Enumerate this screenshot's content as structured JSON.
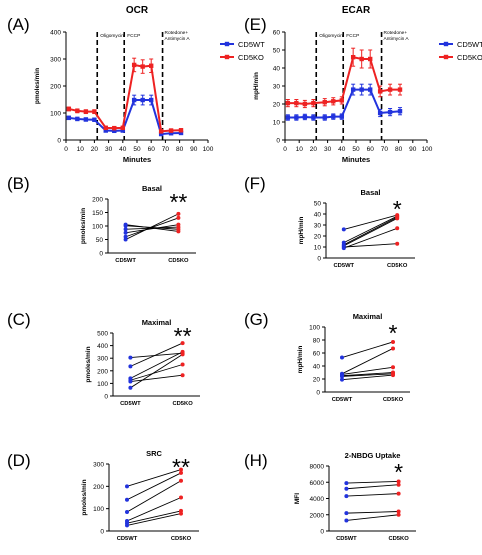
{
  "colors": {
    "wt": "#2233dd",
    "ko": "#ee2222",
    "axis": "#000000"
  },
  "chart_data": [
    {
      "id": "A",
      "panel_letter": "(A)",
      "type": "line",
      "title": "OCR",
      "xlabel": "Minutes",
      "ylabel": "pmoles/min",
      "xlim": [
        0,
        100
      ],
      "ylim": [
        0,
        400
      ],
      "xticks": [
        0,
        10,
        20,
        30,
        40,
        50,
        60,
        70,
        80,
        90,
        100
      ],
      "yticks": [
        0,
        100,
        200,
        300,
        400
      ],
      "legend": [
        "CD5WT",
        "CD5KO"
      ],
      "legend_position": "right",
      "vlines": [
        {
          "x": 22,
          "label": "Oligomycin"
        },
        {
          "x": 41,
          "label": "FCCP"
        },
        {
          "x": 68,
          "label": "Rotedone+ Antimycin A"
        }
      ],
      "x": [
        2,
        8,
        14,
        20,
        28,
        34,
        40,
        48,
        54,
        60,
        67,
        74,
        81
      ],
      "series": [
        {
          "name": "CD5WT",
          "values": [
            82,
            78,
            76,
            75,
            35,
            34,
            35,
            148,
            148,
            148,
            22,
            25,
            26
          ],
          "err": [
            6,
            6,
            6,
            6,
            5,
            5,
            5,
            18,
            18,
            18,
            5,
            5,
            5
          ]
        },
        {
          "name": "CD5KO",
          "values": [
            115,
            108,
            105,
            105,
            45,
            44,
            45,
            278,
            272,
            275,
            32,
            35,
            36
          ],
          "err": [
            7,
            7,
            7,
            7,
            6,
            6,
            6,
            25,
            25,
            25,
            6,
            6,
            6
          ]
        }
      ]
    },
    {
      "id": "E",
      "panel_letter": "(E)",
      "type": "line",
      "title": "ECAR",
      "xlabel": "Minutes",
      "ylabel": "mpH/min",
      "xlim": [
        0,
        100
      ],
      "ylim": [
        0,
        60
      ],
      "xticks": [
        0,
        10,
        20,
        30,
        40,
        50,
        60,
        70,
        80,
        90,
        100
      ],
      "yticks": [
        0,
        10,
        20,
        30,
        40,
        50,
        60
      ],
      "legend": [
        "CD5WT",
        "CD5KO"
      ],
      "legend_position": "right",
      "vlines": [
        {
          "x": 22,
          "label": "Oligomycin"
        },
        {
          "x": 41,
          "label": "FCCP"
        },
        {
          "x": 68,
          "label": "Rotedone+ Antimycin A"
        }
      ],
      "x": [
        2,
        8,
        14,
        20,
        28,
        34,
        40,
        48,
        54,
        60,
        67,
        74,
        81
      ],
      "series": [
        {
          "name": "CD5WT",
          "values": [
            12.5,
            12.5,
            12.8,
            12.5,
            12.5,
            13,
            13,
            28,
            28,
            28,
            15,
            15.5,
            16
          ],
          "err": [
            1.5,
            1.5,
            1.5,
            1.5,
            1.5,
            1.5,
            1.5,
            3,
            3,
            3,
            2,
            2,
            2
          ]
        },
        {
          "name": "CD5KO",
          "values": [
            20.5,
            20.5,
            20,
            20.5,
            21,
            21.5,
            22,
            46,
            45,
            45,
            27,
            28,
            28
          ],
          "err": [
            2,
            2,
            2,
            2,
            2,
            2,
            2,
            5,
            5,
            5,
            3,
            3,
            3
          ]
        }
      ]
    },
    {
      "id": "B",
      "panel_letter": "(B)",
      "type": "paired_dot",
      "title": "Basal",
      "ylabel": "pmoles/min",
      "categories": [
        "CD5WT",
        "CD5KO"
      ],
      "ylim": [
        0,
        200
      ],
      "yticks": [
        0,
        50,
        100,
        150,
        200
      ],
      "significance": "**",
      "pairs": [
        [
          50,
          145
        ],
        [
          60,
          130
        ],
        [
          75,
          105
        ],
        [
          88,
          96
        ],
        [
          101,
          88
        ],
        [
          105,
          80
        ]
      ]
    },
    {
      "id": "F",
      "panel_letter": "(F)",
      "type": "paired_dot",
      "title": "Basal",
      "ylabel": "mpH/min",
      "categories": [
        "CD5WT",
        "CD5KO"
      ],
      "ylim": [
        0,
        50
      ],
      "yticks": [
        0,
        10,
        20,
        30,
        40,
        50
      ],
      "significance": "*",
      "pairs": [
        [
          26,
          39
        ],
        [
          14,
          38
        ],
        [
          12,
          37
        ],
        [
          11,
          36
        ],
        [
          10,
          13
        ],
        [
          9,
          27
        ]
      ]
    },
    {
      "id": "C",
      "panel_letter": "(C)",
      "type": "paired_dot",
      "title": "Maximal",
      "ylabel": "pmoles/min",
      "categories": [
        "CD5WT",
        "CD5KO"
      ],
      "ylim": [
        0,
        500
      ],
      "yticks": [
        0,
        100,
        200,
        300,
        400,
        500
      ],
      "significance": "**",
      "pairs": [
        [
          305,
          340
        ],
        [
          235,
          420
        ],
        [
          140,
          350
        ],
        [
          125,
          250
        ],
        [
          115,
          165
        ],
        [
          65,
          330
        ]
      ]
    },
    {
      "id": "G",
      "panel_letter": "(G)",
      "type": "paired_dot",
      "title": "Maximal",
      "ylabel": "mpH/min",
      "categories": [
        "CD5WT",
        "CD5KO"
      ],
      "ylim": [
        0,
        100
      ],
      "yticks": [
        0,
        20,
        40,
        60,
        80,
        100
      ],
      "significance": "*",
      "pairs": [
        [
          53,
          77
        ],
        [
          28,
          67
        ],
        [
          27,
          38
        ],
        [
          25,
          30
        ],
        [
          24,
          28
        ],
        [
          19,
          26
        ]
      ]
    },
    {
      "id": "D",
      "panel_letter": "(D)",
      "type": "paired_dot",
      "title": "SRC",
      "ylabel": "pmoles/min",
      "categories": [
        "CD5WT",
        "CD5KO"
      ],
      "ylim": [
        0,
        300
      ],
      "yticks": [
        0,
        100,
        200,
        300
      ],
      "significance": "**",
      "pairs": [
        [
          200,
          275
        ],
        [
          140,
          260
        ],
        [
          85,
          225
        ],
        [
          45,
          150
        ],
        [
          35,
          90
        ],
        [
          25,
          78
        ]
      ]
    },
    {
      "id": "H",
      "panel_letter": "(H)",
      "type": "paired_dot",
      "title": "2-NBDG Uptake",
      "ylabel": "MFI",
      "categories": [
        "CD5WT",
        "CD5KO"
      ],
      "ylim": [
        0,
        8000
      ],
      "yticks": [
        0,
        2000,
        4000,
        6000,
        8000
      ],
      "significance": "*",
      "pairs": [
        [
          5900,
          6100
        ],
        [
          5200,
          5700
        ],
        [
          4300,
          4600
        ],
        [
          2200,
          2400
        ],
        [
          1300,
          2000
        ]
      ]
    }
  ]
}
